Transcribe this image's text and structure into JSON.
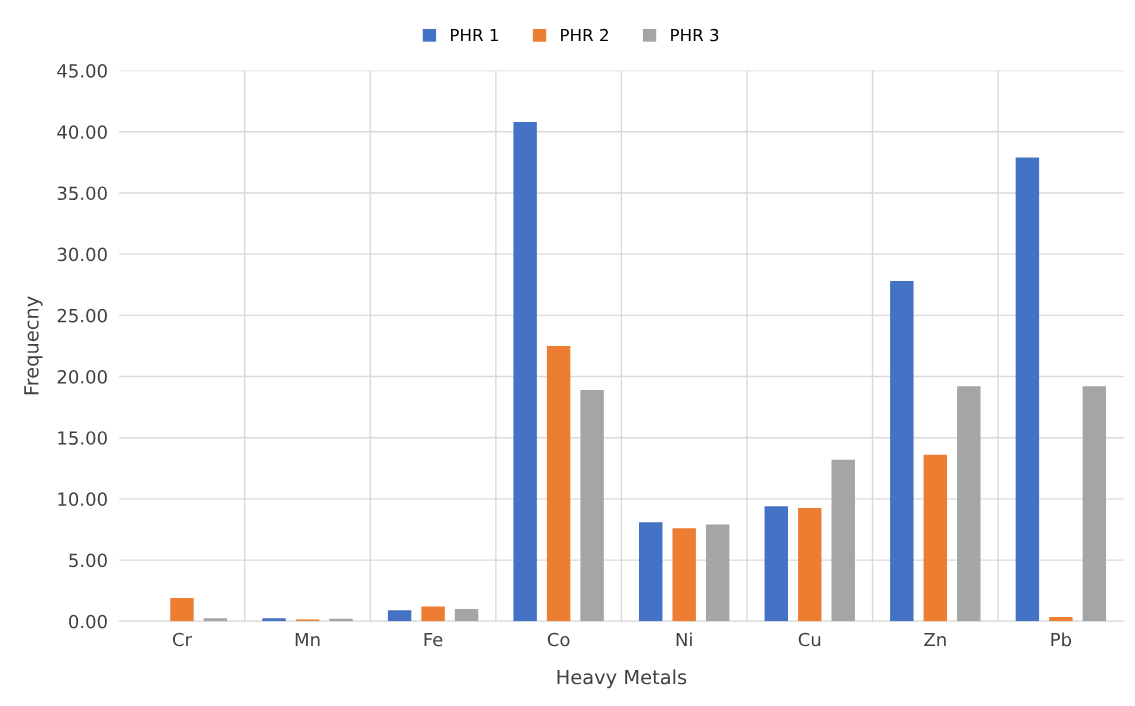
{
  "chart_data": {
    "type": "bar",
    "xlabel": "Heavy Metals",
    "ylabel": "Frequecny",
    "categories": [
      "Cr",
      "Mn",
      "Fe",
      "Co",
      "Ni",
      "Cu",
      "Zn",
      "Pb"
    ],
    "series": [
      {
        "name": "PHR 1",
        "color": "#4472c4",
        "values": [
          0,
          0.25,
          0.9,
          40.8,
          8.1,
          9.4,
          27.8,
          37.9
        ]
      },
      {
        "name": "PHR 2",
        "color": "#ed7d31",
        "values": [
          1.9,
          0.15,
          1.2,
          22.5,
          7.6,
          9.25,
          13.6,
          0.35
        ]
      },
      {
        "name": "PHR 3",
        "color": "#a5a5a5",
        "values": [
          0.25,
          0.2,
          1.0,
          18.9,
          7.9,
          13.2,
          19.2,
          19.2
        ]
      }
    ],
    "ylim": [
      0,
      45
    ],
    "yticks": [
      {
        "value": 0,
        "label": "0.00"
      },
      {
        "value": 5,
        "label": "5.00"
      },
      {
        "value": 10,
        "label": "10.00"
      },
      {
        "value": 15,
        "label": "15.00"
      },
      {
        "value": 20,
        "label": "20.00"
      },
      {
        "value": 25,
        "label": "25.00"
      },
      {
        "value": 30,
        "label": "30.00"
      },
      {
        "value": 35,
        "label": "35.00"
      },
      {
        "value": 40,
        "label": "40.00"
      },
      {
        "value": 45,
        "label": "45.00"
      }
    ],
    "grid": "y",
    "legend": "top"
  }
}
